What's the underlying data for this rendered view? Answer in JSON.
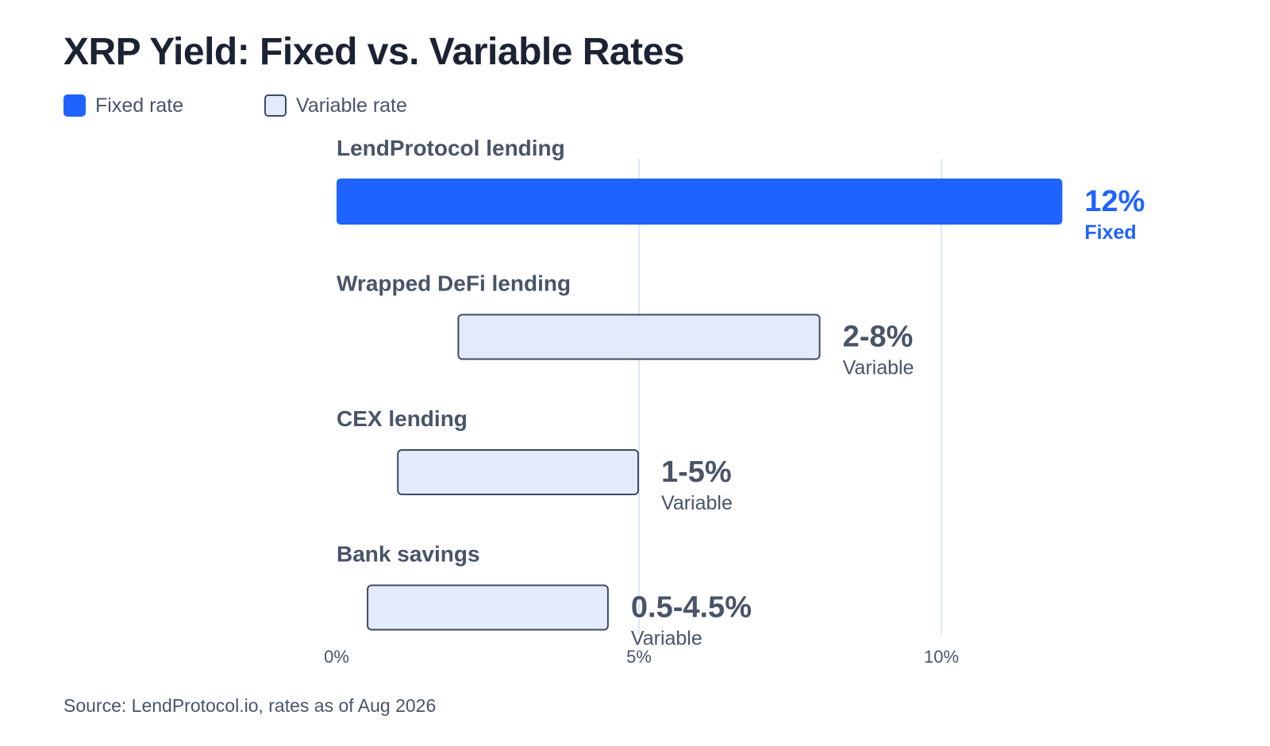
{
  "chart_data": {
    "type": "bar",
    "title": "XRP Yield: Fixed vs. Variable Rates",
    "legend": [
      {
        "label": "Fixed rate",
        "kind": "fixed"
      },
      {
        "label": "Variable rate",
        "kind": "variable"
      }
    ],
    "legend_position": "top-left",
    "categories": [
      "LendProtocol lending",
      "Wrapped DeFi lending",
      "CEX lending",
      "Bank savings"
    ],
    "bars": [
      {
        "category": "LendProtocol lending",
        "kind": "fixed",
        "low": 0,
        "high": 12,
        "value_label": "12%",
        "type_label": "Fixed"
      },
      {
        "category": "Wrapped DeFi lending",
        "kind": "variable",
        "low": 2,
        "high": 8,
        "value_label": "2-8%",
        "type_label": "Variable"
      },
      {
        "category": "CEX lending",
        "kind": "variable",
        "low": 1,
        "high": 5,
        "value_label": "1-5%",
        "type_label": "Variable"
      },
      {
        "category": "Bank savings",
        "kind": "variable",
        "low": 0.5,
        "high": 4.5,
        "value_label": "0.5-4.5%",
        "type_label": "Variable"
      }
    ],
    "x_ticks": [
      {
        "value": 0,
        "label": "0%"
      },
      {
        "value": 5,
        "label": "5%"
      },
      {
        "value": 10,
        "label": "10%"
      }
    ],
    "xlim": [
      0,
      12
    ],
    "grid": true,
    "source": "Source: LendProtocol.io, rates as of Aug 2026"
  },
  "colors": {
    "fixed_fill": "#1f63ff",
    "variable_fill": "#e2eafc",
    "variable_stroke": "#3d4b62",
    "fixed_text": "#1f63ff",
    "variable_text": "#485468",
    "category_text": "#485468",
    "grid": "#dfe6f5",
    "title_text": "#1b2233"
  }
}
